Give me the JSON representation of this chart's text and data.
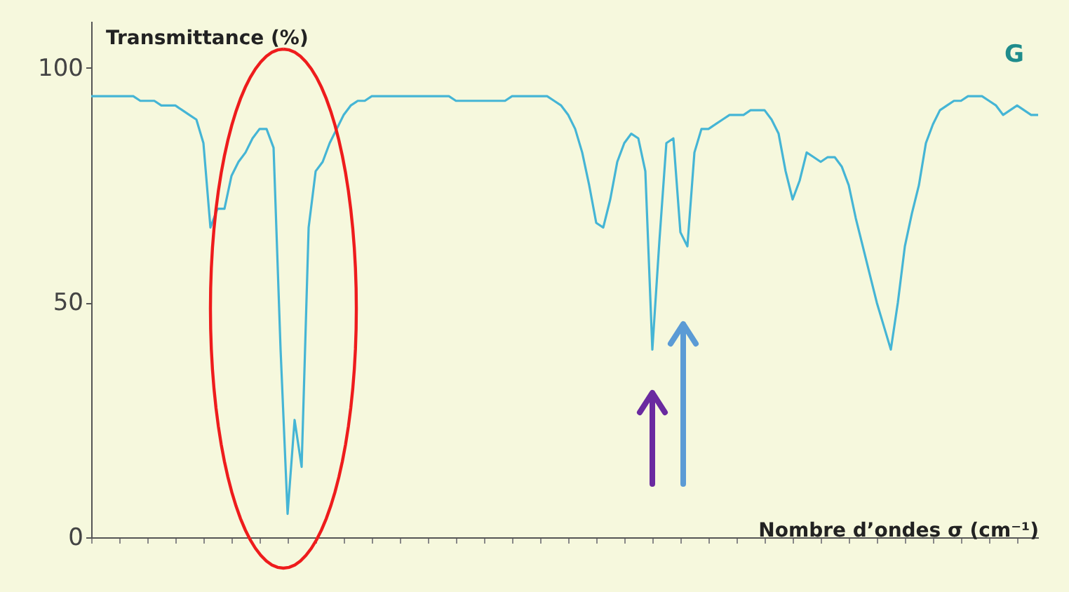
{
  "chart_data": {
    "type": "line",
    "ylabel": "Transmittance (%)",
    "xlabel": "Nombre d’ondes σ (cm⁻¹)",
    "annotations": [
      "G"
    ],
    "ylim": [
      0,
      110
    ],
    "yticks": [
      0,
      50,
      100
    ],
    "grid": false,
    "marker": "none",
    "line_style": "solid",
    "tick_labels": "y",
    "categories": [
      null,
      null,
      null,
      null,
      null,
      null,
      null,
      null,
      null,
      null,
      null,
      null,
      null,
      null,
      null,
      null,
      null,
      null,
      null,
      null,
      null,
      null,
      null,
      null,
      null,
      null,
      null,
      null,
      null,
      null,
      null,
      null,
      null,
      null,
      null,
      null,
      null,
      null,
      null,
      null,
      null,
      null,
      null,
      null,
      null,
      null,
      null,
      null,
      null,
      null,
      null,
      null,
      null,
      null,
      null,
      null,
      null,
      null,
      null,
      null,
      null,
      null,
      null,
      null,
      null,
      null,
      null,
      null,
      null,
      null,
      null,
      null,
      null,
      null,
      null,
      null,
      null,
      null,
      null,
      null,
      null,
      null,
      null,
      null,
      null,
      null,
      null,
      null,
      null,
      null,
      null,
      null,
      null,
      null,
      null,
      null,
      null,
      null,
      null,
      null,
      null,
      null,
      null,
      null,
      null,
      null,
      null,
      null,
      null,
      null,
      null,
      null,
      null,
      null,
      null,
      null,
      null,
      null,
      null,
      null,
      null,
      null,
      null,
      null,
      null,
      null,
      null,
      null,
      null,
      null,
      null,
      null,
      null,
      null,
      null,
      null
    ],
    "series": [
      {
        "color": "#45b5d5",
        "values": [
          94,
          94,
          94,
          94,
          94,
          94,
          94,
          93,
          93,
          93,
          92,
          92,
          92,
          91,
          90,
          89,
          84,
          66,
          70,
          70,
          77,
          80,
          82,
          85,
          87,
          87,
          83,
          40,
          5,
          25,
          15,
          66,
          78,
          80,
          84,
          87,
          90,
          92,
          93,
          93,
          94,
          94,
          94,
          94,
          94,
          94,
          94,
          94,
          94,
          94,
          94,
          94,
          93,
          93,
          93,
          93,
          93,
          93,
          93,
          93,
          94,
          94,
          94,
          94,
          94,
          94,
          93,
          92,
          90,
          87,
          82,
          75,
          67,
          66,
          72,
          80,
          84,
          86,
          85,
          78,
          40,
          63,
          84,
          85,
          65,
          62,
          82,
          87,
          87,
          88,
          89,
          90,
          90,
          90,
          91,
          91,
          91,
          89,
          86,
          78,
          72,
          76,
          82,
          81,
          80,
          81,
          81,
          79,
          75,
          68,
          62,
          56,
          50,
          45,
          40,
          50,
          62,
          69,
          75,
          84,
          88,
          91,
          92,
          93,
          93,
          94,
          94,
          94,
          93,
          92,
          90,
          91,
          92,
          91,
          90,
          90
        ]
      }
    ]
  }
}
